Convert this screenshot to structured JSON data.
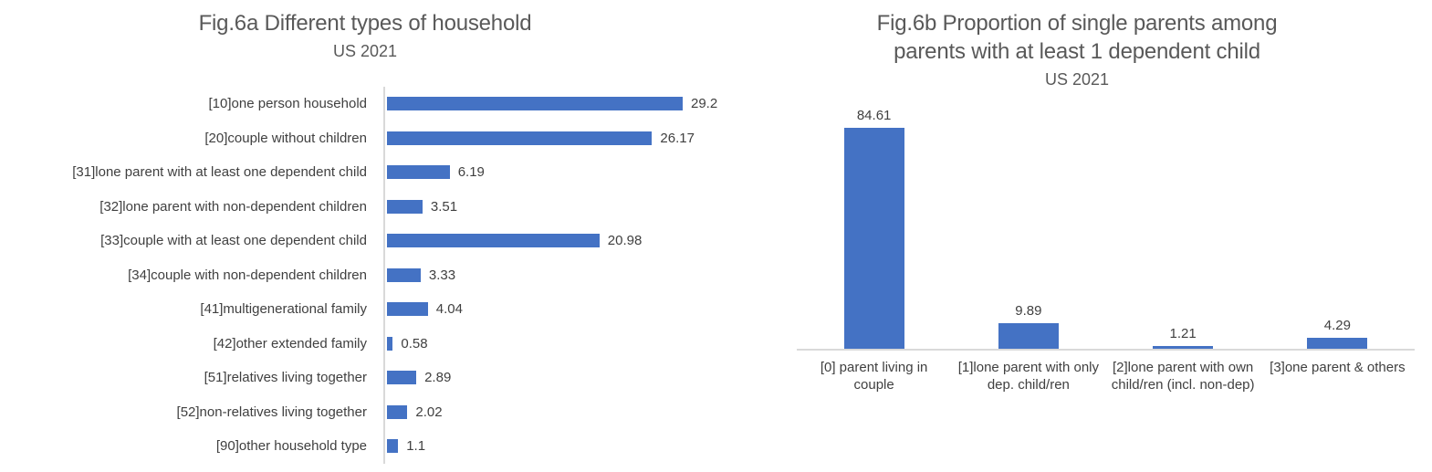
{
  "colors": {
    "bar": "#4472C4",
    "axis_line": "#D9D9D9",
    "title_text": "#595959",
    "label_text": "#404040"
  },
  "chart_data": [
    {
      "type": "bar",
      "orientation": "horizontal",
      "title": "Fig.6a Different types of household",
      "subtitle": "US 2021",
      "categories": [
        "[10]one person household",
        "[20]couple without children",
        "[31]lone parent with at least one dependent child",
        "[32]lone parent with non-dependent children",
        "[33]couple with at least one dependent child",
        "[34]couple with non-dependent children",
        "[41]multigenerational family",
        "[42]other extended family",
        "[51]relatives living together",
        "[52]non-relatives living together",
        "[90]other household type"
      ],
      "values": [
        29.2,
        26.17,
        6.19,
        3.51,
        20.98,
        3.33,
        4.04,
        0.58,
        2.89,
        2.02,
        1.1
      ],
      "value_labels": [
        "29.2",
        "26.17",
        "6.19",
        "3.51",
        "20.98",
        "3.33",
        "4.04",
        "0.58",
        "2.89",
        "2.02",
        "1.1"
      ],
      "xlabel": "",
      "ylabel": "",
      "xlim": [
        0,
        29.2
      ],
      "grid": false,
      "legend": false,
      "data_labels": true
    },
    {
      "type": "bar",
      "orientation": "vertical",
      "title": "Fig.6b Proportion of single parents among parents with at least 1 dependent child",
      "title_lines": [
        "Fig.6b Proportion of single parents among",
        "parents with at least 1 dependent child"
      ],
      "subtitle": "US 2021",
      "categories": [
        "[0] parent living in couple",
        "[1]lone parent with only dep. child/ren",
        "[2]lone parent with own child/ren (incl. non-dep)",
        "[3]one parent & others"
      ],
      "values": [
        84.61,
        9.89,
        1.21,
        4.29
      ],
      "value_labels": [
        "84.61",
        "9.89",
        "1.21",
        "4.29"
      ],
      "xlabel": "",
      "ylabel": "",
      "ylim": [
        0,
        84.61
      ],
      "grid": false,
      "legend": false,
      "data_labels": true
    }
  ]
}
